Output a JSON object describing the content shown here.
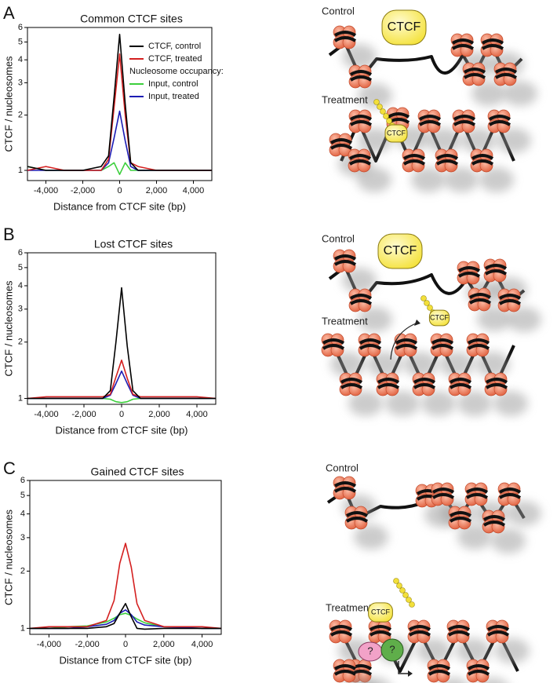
{
  "panels": [
    "A",
    "B",
    "C"
  ],
  "chart_data": [
    {
      "type": "line",
      "title": "Common CTCF sites",
      "x_label": "Distance from CTCF site (bp)",
      "y_label": "CTCF / nucleosomes",
      "log_scale": true,
      "legend": "top-right",
      "legend_note": "Nucleosome occupancy:",
      "x": [
        -5000,
        -4000,
        -3000,
        -2000,
        -1000,
        -600,
        -300,
        0,
        300,
        600,
        1000,
        2000,
        3000,
        4000,
        5000
      ],
      "series": [
        {
          "name": "CTCF, control",
          "color": "#000000",
          "values": [
            1.05,
            1.0,
            1.0,
            1.0,
            1.05,
            1.2,
            2.5,
            5.5,
            2.3,
            1.1,
            1.0,
            1.0,
            1.0,
            1.0,
            1.0
          ]
        },
        {
          "name": "CTCF, treated",
          "color": "#d42020",
          "values": [
            1.0,
            1.05,
            1.0,
            1.0,
            1.0,
            1.15,
            2.2,
            4.3,
            2.0,
            1.1,
            1.05,
            1.0,
            1.0,
            1.0,
            1.0
          ]
        },
        {
          "name": "Input, control",
          "color": "#3ccf3c",
          "values": [
            1.05,
            1.0,
            1.0,
            1.0,
            1.0,
            1.05,
            1.1,
            0.95,
            1.1,
            1.0,
            1.0,
            1.0,
            1.0,
            1.0,
            1.0
          ]
        },
        {
          "name": "Input, treated",
          "color": "#1c1cb4",
          "values": [
            1.0,
            1.0,
            1.0,
            1.0,
            1.0,
            1.1,
            1.5,
            2.1,
            1.45,
            1.05,
            1.0,
            1.0,
            1.0,
            1.0,
            1.0
          ]
        }
      ],
      "xlim": [
        -5000,
        5000
      ],
      "xticks": [
        {
          "value": -4000,
          "label": "-4,000"
        },
        {
          "value": -2000,
          "label": "-2,000"
        },
        0,
        {
          "value": 2000,
          "label": "2,000"
        },
        {
          "value": 4000,
          "label": "4,000"
        }
      ],
      "ylim": [
        0.88,
        6
      ],
      "yticks": [
        1,
        2,
        3,
        4,
        5,
        6
      ]
    },
    {
      "type": "line",
      "title": "Lost CTCF sites",
      "x_label": "Distance from CTCF site (bp)",
      "y_label": "CTCF / nucleosomes",
      "log_scale": true,
      "x": [
        -5000,
        -4000,
        -3000,
        -2000,
        -1000,
        -600,
        -300,
        0,
        300,
        600,
        1000,
        2000,
        3000,
        4000,
        5000
      ],
      "series": [
        {
          "name": "CTCF, control",
          "color": "#000000",
          "values": [
            1.0,
            1.0,
            1.0,
            1.0,
            1.0,
            1.1,
            2.0,
            3.9,
            1.9,
            1.1,
            1.0,
            1.0,
            1.0,
            1.0,
            1.0
          ]
        },
        {
          "name": "CTCF, treated",
          "color": "#d42020",
          "values": [
            1.0,
            1.02,
            1.02,
            1.02,
            1.02,
            1.05,
            1.3,
            1.6,
            1.28,
            1.05,
            1.02,
            1.02,
            1.02,
            1.02,
            1.0
          ]
        },
        {
          "name": "Input, control",
          "color": "#3ccf3c",
          "values": [
            1.0,
            1.0,
            1.0,
            1.0,
            1.0,
            0.99,
            0.96,
            0.95,
            0.96,
            0.99,
            1.0,
            1.0,
            1.0,
            1.0,
            1.0
          ]
        },
        {
          "name": "Input, treated",
          "color": "#1c1cb4",
          "values": [
            1.0,
            1.0,
            1.0,
            1.0,
            1.0,
            1.04,
            1.2,
            1.4,
            1.2,
            1.04,
            1.0,
            1.0,
            1.0,
            1.0,
            1.0
          ]
        }
      ],
      "xlim": [
        -5000,
        5000
      ],
      "xticks": [
        {
          "value": -4000,
          "label": "-4,000"
        },
        {
          "value": -2000,
          "label": "-2,000"
        },
        0,
        {
          "value": 2000,
          "label": "2,000"
        },
        {
          "value": 4000,
          "label": "4,000"
        }
      ],
      "ylim": [
        0.93,
        6
      ],
      "yticks": [
        1,
        2,
        3,
        4,
        5,
        6
      ]
    },
    {
      "type": "line",
      "title": "Gained CTCF sites",
      "x_label": "Distance from CTCF site (bp)",
      "y_label": "CTCF / nucleosomes",
      "log_scale": true,
      "x": [
        -5000,
        -4000,
        -3000,
        -2000,
        -1000,
        -600,
        -300,
        0,
        300,
        600,
        1000,
        2000,
        3000,
        4000,
        5000
      ],
      "series": [
        {
          "name": "CTCF, control",
          "color": "#000000",
          "values": [
            1.0,
            1.0,
            1.0,
            1.0,
            1.02,
            1.06,
            1.2,
            1.35,
            1.15,
            1.0,
            0.99,
            1.0,
            1.0,
            1.0,
            1.0
          ]
        },
        {
          "name": "CTCF, treated",
          "color": "#d42020",
          "values": [
            1.0,
            1.02,
            1.02,
            1.02,
            1.1,
            1.4,
            2.2,
            2.8,
            2.1,
            1.35,
            1.1,
            1.02,
            1.02,
            1.02,
            1.0
          ]
        },
        {
          "name": "Input, control",
          "color": "#3ccf3c",
          "values": [
            1.0,
            1.0,
            1.02,
            1.03,
            1.08,
            1.13,
            1.18,
            1.2,
            1.17,
            1.12,
            1.07,
            1.02,
            1.01,
            1.0,
            1.0
          ]
        },
        {
          "name": "Input, treated",
          "color": "#1c1cb4",
          "values": [
            1.0,
            1.0,
            1.0,
            1.02,
            1.05,
            1.1,
            1.2,
            1.25,
            1.18,
            1.08,
            1.04,
            1.02,
            1.01,
            1.0,
            1.0
          ]
        }
      ],
      "xlim": [
        -5000,
        5000
      ],
      "xticks": [
        {
          "value": -4000,
          "label": "-4,000"
        },
        {
          "value": -2000,
          "label": "-2,000"
        },
        0,
        {
          "value": 2000,
          "label": "2,000"
        },
        {
          "value": 4000,
          "label": "4,000"
        }
      ],
      "ylim": [
        0.93,
        6
      ],
      "yticks": [
        1,
        2,
        3,
        4,
        5,
        6
      ]
    }
  ],
  "diagrams": [
    {
      "control": "Control",
      "treatment": "Treatment",
      "ctcf": [
        "CTCF",
        "CTCF"
      ]
    },
    {
      "control": "Control",
      "treatment": "Treatment",
      "ctcf": [
        "CTCF",
        "CTCF"
      ]
    },
    {
      "control": "Control",
      "treatment": "Treatment",
      "ctcf": [
        "CTCF"
      ],
      "unknown": [
        "?",
        "?"
      ]
    }
  ]
}
